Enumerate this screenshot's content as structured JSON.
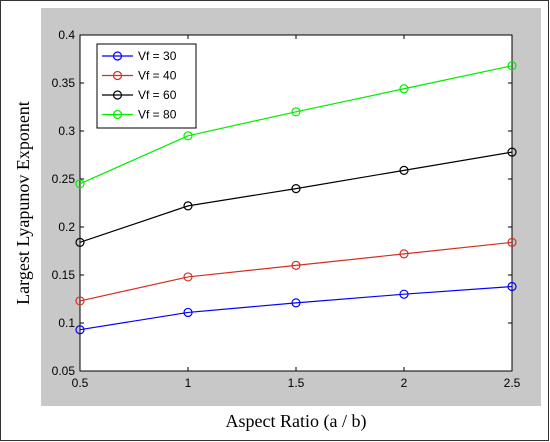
{
  "chart_data": {
    "type": "line",
    "title": "",
    "xlabel": "Aspect Ratio (a / b)",
    "ylabel": "Largest Lyapunov Exponent",
    "x": [
      0.5,
      1,
      1.5,
      2,
      2.5
    ],
    "xlim": [
      0.5,
      2.5
    ],
    "ylim": [
      0.05,
      0.4
    ],
    "xticks": [
      "0.5",
      "1",
      "1.5",
      "2",
      "2.5"
    ],
    "yticks": [
      "0.05",
      "0.1",
      "0.15",
      "0.2",
      "0.25",
      "0.3",
      "0.35",
      "0.4"
    ],
    "grid": false,
    "legend_position": "top-left",
    "marker": "open-circle",
    "series": [
      {
        "name": "Vf = 30",
        "color": "#0000ff",
        "values": [
          0.093,
          0.111,
          0.121,
          0.13,
          0.138
        ]
      },
      {
        "name": "Vf = 40",
        "color": "#d62f1f",
        "values": [
          0.123,
          0.148,
          0.16,
          0.172,
          0.184
        ]
      },
      {
        "name": "Vf = 60",
        "color": "#000000",
        "values": [
          0.184,
          0.222,
          0.24,
          0.259,
          0.278
        ]
      },
      {
        "name": "Vf = 80",
        "color": "#00ee00",
        "values": [
          0.245,
          0.295,
          0.32,
          0.344,
          0.368
        ]
      }
    ]
  },
  "colors": {
    "figure_background": "#c8c8c8",
    "axes_background": "#ffffff",
    "border": "#333333"
  }
}
